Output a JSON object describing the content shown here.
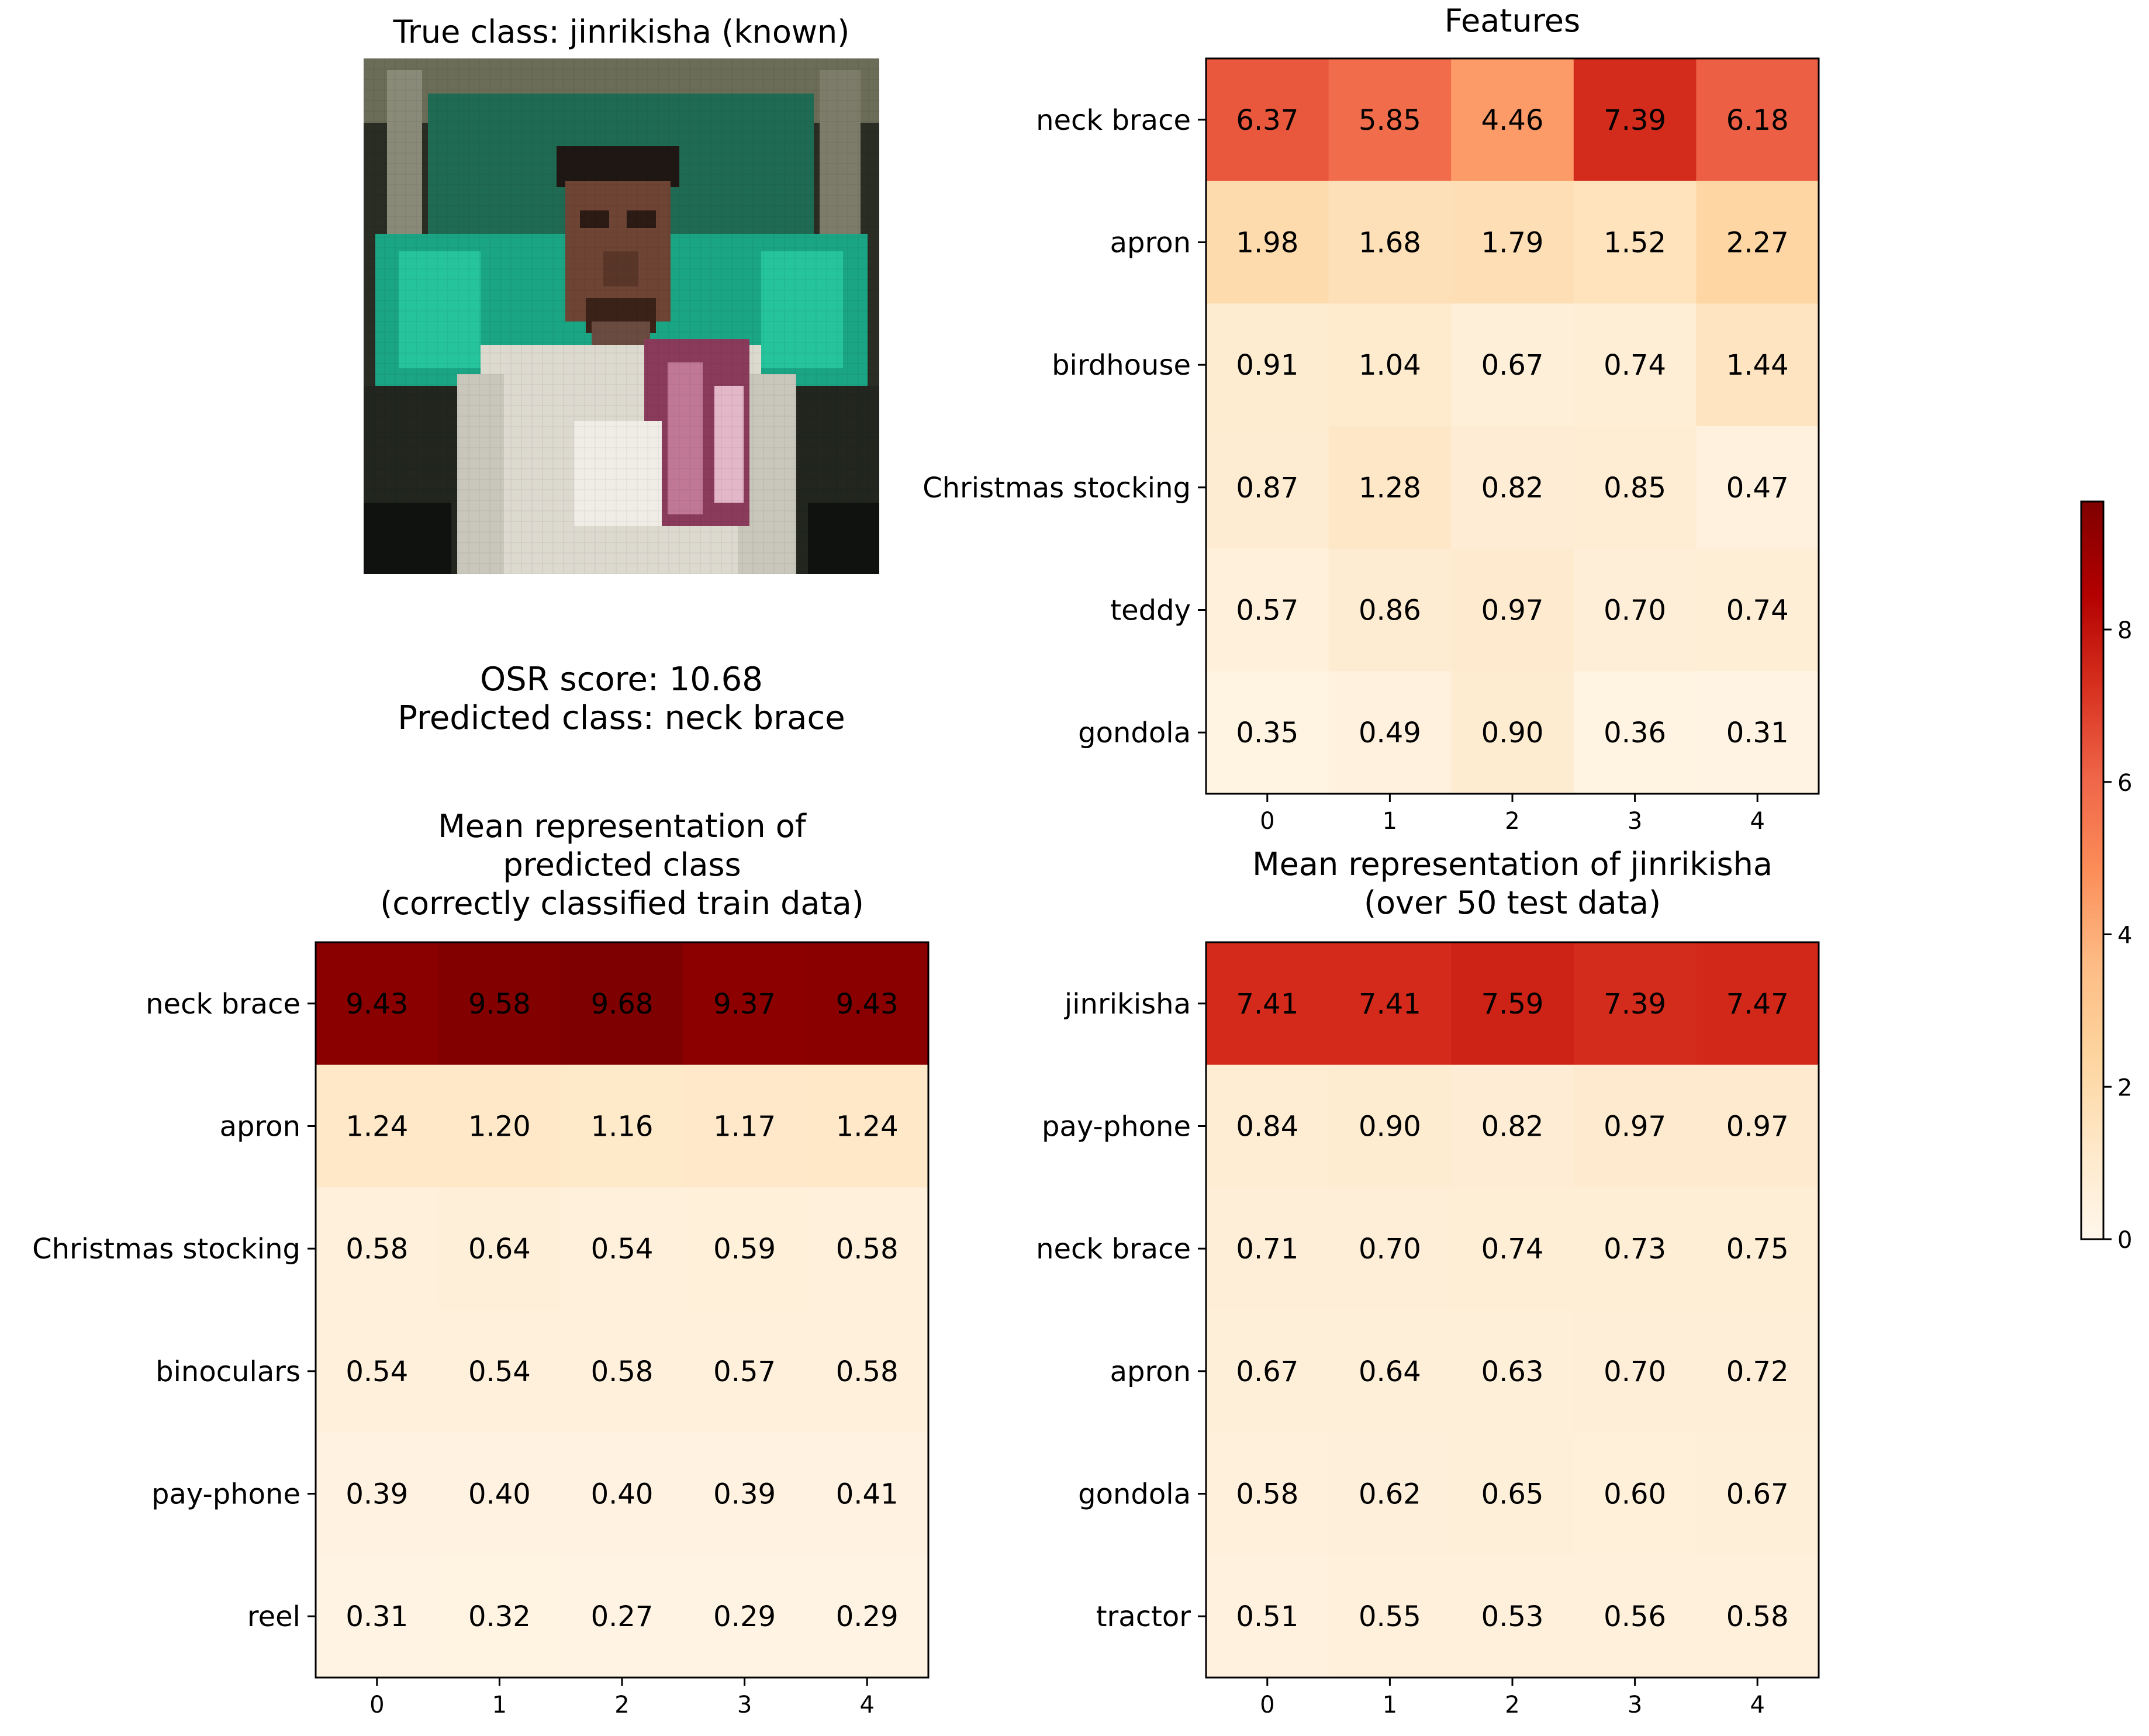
{
  "panels": {
    "image": {
      "title": "True class: jinrikisha (known)"
    },
    "osr": {
      "score_text": "OSR score: 10.68",
      "predicted_text": "Predicted class: neck brace"
    }
  },
  "colormap": {
    "name": "OrRd",
    "min": 0,
    "max": 9.68
  },
  "colorbar": {
    "ticks": [
      0,
      2,
      4,
      6,
      8
    ]
  },
  "chart_data": [
    {
      "type": "heatmap",
      "id": "features",
      "title": "Features",
      "x": [
        0,
        1,
        2,
        3,
        4
      ],
      "rows": [
        "neck brace",
        "apron",
        "birdhouse",
        "Christmas stocking",
        "teddy",
        "gondola"
      ],
      "values": [
        [
          6.37,
          5.85,
          4.46,
          7.39,
          6.18
        ],
        [
          1.98,
          1.68,
          1.79,
          1.52,
          2.27
        ],
        [
          0.91,
          1.04,
          0.67,
          0.74,
          1.44
        ],
        [
          0.87,
          1.28,
          0.82,
          0.85,
          0.47
        ],
        [
          0.57,
          0.86,
          0.97,
          0.7,
          0.74
        ],
        [
          0.35,
          0.49,
          0.9,
          0.36,
          0.31
        ]
      ],
      "labels": [
        [
          "6.37",
          "5.85",
          "4.46",
          "7.39",
          "6.18"
        ],
        [
          "1.98",
          "1.68",
          "1.79",
          "1.52",
          "2.27"
        ],
        [
          "0.91",
          "1.04",
          "0.67",
          "0.74",
          "1.44"
        ],
        [
          "0.87",
          "1.28",
          "0.82",
          "0.85",
          "0.47"
        ],
        [
          "0.57",
          "0.86",
          "0.97",
          "0.70",
          "0.74"
        ],
        [
          "0.35",
          "0.49",
          "0.90",
          "0.36",
          "0.31"
        ]
      ]
    },
    {
      "type": "heatmap",
      "id": "mean-predicted",
      "title": "Mean representation of\npredicted class\n(correctly classified train data)",
      "x": [
        0,
        1,
        2,
        3,
        4
      ],
      "rows": [
        "neck brace",
        "apron",
        "Christmas stocking",
        "binoculars",
        "pay-phone",
        "reel"
      ],
      "values": [
        [
          9.43,
          9.58,
          9.68,
          9.37,
          9.43
        ],
        [
          1.24,
          1.2,
          1.16,
          1.17,
          1.24
        ],
        [
          0.58,
          0.64,
          0.54,
          0.59,
          0.58
        ],
        [
          0.54,
          0.54,
          0.58,
          0.57,
          0.58
        ],
        [
          0.39,
          0.4,
          0.4,
          0.39,
          0.41
        ],
        [
          0.31,
          0.32,
          0.27,
          0.29,
          0.29
        ]
      ],
      "labels": [
        [
          "9.43",
          "9.58",
          "9.68",
          "9.37",
          "9.43"
        ],
        [
          "1.24",
          "1.20",
          "1.16",
          "1.17",
          "1.24"
        ],
        [
          "0.58",
          "0.64",
          "0.54",
          "0.59",
          "0.58"
        ],
        [
          "0.54",
          "0.54",
          "0.58",
          "0.57",
          "0.58"
        ],
        [
          "0.39",
          "0.40",
          "0.40",
          "0.39",
          "0.41"
        ],
        [
          "0.31",
          "0.32",
          "0.27",
          "0.29",
          "0.29"
        ]
      ]
    },
    {
      "type": "heatmap",
      "id": "mean-true",
      "title": "Mean representation of jinrikisha\n(over 50 test data)",
      "x": [
        0,
        1,
        2,
        3,
        4
      ],
      "rows": [
        "jinrikisha",
        "pay-phone",
        "neck brace",
        "apron",
        "gondola",
        "tractor"
      ],
      "values": [
        [
          7.41,
          7.41,
          7.59,
          7.39,
          7.47
        ],
        [
          0.84,
          0.9,
          0.82,
          0.97,
          0.97
        ],
        [
          0.71,
          0.7,
          0.74,
          0.73,
          0.75
        ],
        [
          0.67,
          0.64,
          0.63,
          0.7,
          0.72
        ],
        [
          0.58,
          0.62,
          0.65,
          0.6,
          0.67
        ],
        [
          0.51,
          0.55,
          0.53,
          0.56,
          0.58
        ]
      ],
      "labels": [
        [
          "7.41",
          "7.41",
          "7.59",
          "7.39",
          "7.47"
        ],
        [
          "0.84",
          "0.90",
          "0.82",
          "0.97",
          "0.97"
        ],
        [
          "0.71",
          "0.70",
          "0.74",
          "0.73",
          "0.75"
        ],
        [
          "0.67",
          "0.64",
          "0.63",
          "0.70",
          "0.72"
        ],
        [
          "0.58",
          "0.62",
          "0.65",
          "0.60",
          "0.67"
        ],
        [
          "0.51",
          "0.55",
          "0.53",
          "0.56",
          "0.58"
        ]
      ]
    }
  ]
}
